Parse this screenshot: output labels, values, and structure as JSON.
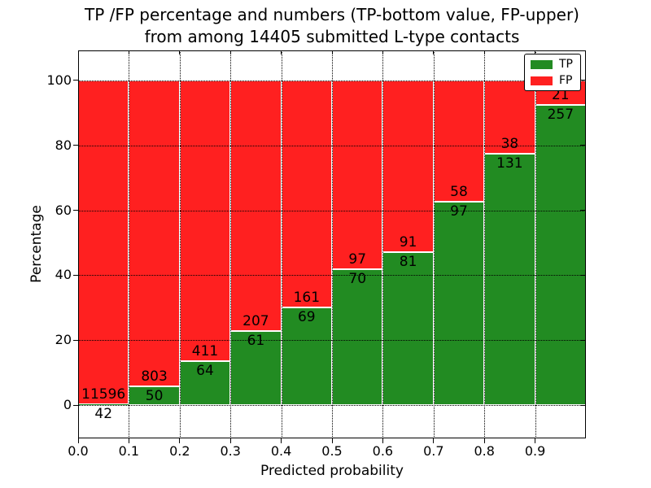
{
  "title": {
    "line1": "TP /FP percentage and numbers (TP-bottom value, FP-upper)",
    "line2": "from among 14405 submitted L-type contacts"
  },
  "chart_data": {
    "type": "bar",
    "stacked": true,
    "normalized": "each bar scaled to 100%",
    "total_submitted": 14405,
    "bin_left_edges": [
      0.0,
      0.1,
      0.2,
      0.3,
      0.4,
      0.5,
      0.6,
      0.7,
      0.8,
      0.9
    ],
    "bin_width": 0.1,
    "series": [
      {
        "name": "TP",
        "color": "#228b22",
        "counts": [
          42,
          50,
          64,
          61,
          69,
          70,
          81,
          97,
          131,
          257
        ]
      },
      {
        "name": "FP",
        "color": "#ff2020",
        "counts": [
          11596,
          803,
          411,
          207,
          161,
          97,
          91,
          58,
          38,
          21
        ]
      }
    ],
    "xlabel": "Predicted probability",
    "ylabel": "Percentage",
    "x_ticks": [
      "0.0",
      "0.1",
      "0.2",
      "0.3",
      "0.4",
      "0.5",
      "0.6",
      "0.7",
      "0.8",
      "0.9"
    ],
    "y_ticks": [
      0,
      20,
      40,
      60,
      80,
      100
    ],
    "xlim": [
      0.0,
      1.0
    ],
    "ylim": [
      -10.25,
      109.25
    ],
    "grid": "dotted",
    "bar_edge_color": "#ffffff",
    "legend": {
      "position": "upper right",
      "entries": [
        {
          "label": "TP",
          "color": "#228b22"
        },
        {
          "label": "FP",
          "color": "#ff2020"
        }
      ]
    }
  }
}
